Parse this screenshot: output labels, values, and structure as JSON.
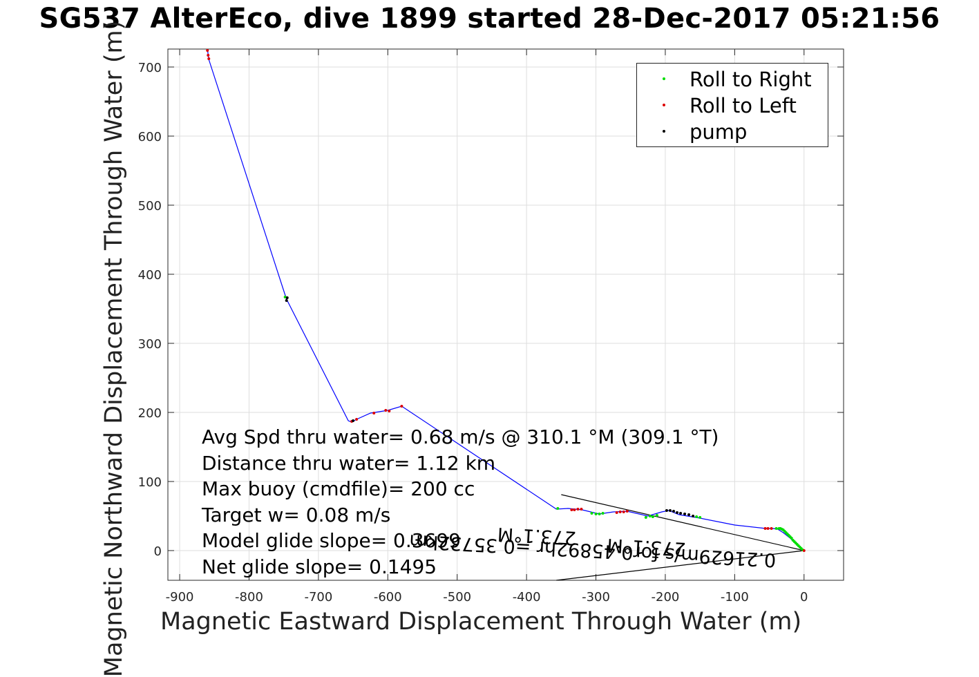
{
  "title": "SG537 AlterEco, dive 1899 started 28-Dec-2017 05:21:56",
  "chart_data": {
    "type": "line",
    "xlabel": "Magnetic Eastward Displacement Through Water (m)",
    "ylabel": "Magnetic Northward Displacement Through Water (m)",
    "xlim": [
      -917,
      57
    ],
    "ylim": [
      -43,
      726
    ],
    "xticks": [
      -900,
      -800,
      -700,
      -600,
      -500,
      -400,
      -300,
      -200,
      -100,
      0
    ],
    "yticks": [
      0,
      100,
      200,
      300,
      400,
      500,
      600,
      700
    ],
    "grid": true,
    "legend_position": "top-right",
    "track": {
      "name": "track",
      "color": "#0000ff",
      "points": [
        [
          0,
          0
        ],
        [
          -10,
          8
        ],
        [
          -20,
          18
        ],
        [
          -30,
          26
        ],
        [
          -38,
          31
        ],
        [
          -45,
          32
        ],
        [
          -55,
          32
        ],
        [
          -100,
          37
        ],
        [
          -150,
          47
        ],
        [
          -180,
          52
        ],
        [
          -195,
          58
        ],
        [
          -205,
          56
        ],
        [
          -225,
          50
        ],
        [
          -255,
          57
        ],
        [
          -275,
          56
        ],
        [
          -295,
          53
        ],
        [
          -320,
          59
        ],
        [
          -340,
          61
        ],
        [
          -357,
          60
        ],
        [
          -580,
          209
        ],
        [
          -600,
          203
        ],
        [
          -625,
          199
        ],
        [
          -645,
          190
        ],
        [
          -652,
          186
        ],
        [
          -657,
          188
        ],
        [
          -746,
          364
        ],
        [
          -749,
          373
        ],
        [
          -858,
          711
        ],
        [
          -860,
          726
        ]
      ]
    },
    "roll_right": {
      "name": "Roll to Right",
      "color": "#00dd00",
      "points": [
        [
          -2,
          1
        ],
        [
          -4,
          3
        ],
        [
          -6,
          5
        ],
        [
          -8,
          7
        ],
        [
          -10,
          9
        ],
        [
          -12,
          11
        ],
        [
          -14,
          13
        ],
        [
          -16,
          15
        ],
        [
          -18,
          18
        ],
        [
          -20,
          20
        ],
        [
          -22,
          22
        ],
        [
          -24,
          24
        ],
        [
          -26,
          26
        ],
        [
          -28,
          28
        ],
        [
          -30,
          30
        ],
        [
          -32,
          31
        ],
        [
          -34,
          32
        ],
        [
          -36,
          32
        ],
        [
          -40,
          32
        ],
        [
          -150,
          48
        ],
        [
          -155,
          49
        ],
        [
          -212,
          51
        ],
        [
          -218,
          49
        ],
        [
          -222,
          50
        ],
        [
          -228,
          48
        ],
        [
          -290,
          54
        ],
        [
          -295,
          53
        ],
        [
          -300,
          53
        ],
        [
          -306,
          54
        ],
        [
          -355,
          61
        ],
        [
          -748,
          367
        ]
      ]
    },
    "roll_left": {
      "name": "Roll to Left",
      "color": "#dd0000",
      "points": [
        [
          0,
          0
        ],
        [
          -47,
          32
        ],
        [
          -52,
          32
        ],
        [
          -56,
          32
        ],
        [
          -255,
          57
        ],
        [
          -260,
          56
        ],
        [
          -265,
          56
        ],
        [
          -270,
          55
        ],
        [
          -321,
          60
        ],
        [
          -326,
          60
        ],
        [
          -331,
          59
        ],
        [
          -335,
          59
        ],
        [
          -598,
          202
        ],
        [
          -603,
          203
        ],
        [
          -620,
          199
        ],
        [
          -645,
          190
        ],
        [
          -652,
          187
        ],
        [
          -580,
          209
        ],
        [
          -858,
          712
        ],
        [
          -859,
          717
        ],
        [
          -860,
          724
        ]
      ]
    },
    "pump": {
      "name": "pump",
      "color": "#000000",
      "points": [
        [
          -160,
          50
        ],
        [
          -166,
          52
        ],
        [
          -172,
          53
        ],
        [
          -178,
          54
        ],
        [
          -183,
          55
        ],
        [
          -188,
          57
        ],
        [
          -193,
          58
        ],
        [
          -198,
          58
        ],
        [
          -745,
          366
        ],
        [
          -746,
          362
        ],
        [
          -650,
          188
        ]
      ]
    },
    "glide_lines": {
      "color": "#000000",
      "segments": [
        [
          [
            0,
            0
          ],
          [
            -350,
            81
          ]
        ],
        [
          [
            0,
            0
          ],
          [
            -357,
            -43
          ]
        ]
      ]
    },
    "rotated_labels": [
      "0.21629m/s for0.45892hr =0.35732km",
      "273.1°M",
      "273.1°M"
    ],
    "stats": [
      "Avg Spd thru water=  0.68 m/s @ 310.1 °M (309.1 °T)",
      "Distance thru water=  1.12 km",
      "Max buoy (cmdfile)= 200 cc",
      "Target w= 0.08 m/s",
      "Model glide slope= 0.3699",
      "Net glide slope= 0.1495"
    ]
  }
}
